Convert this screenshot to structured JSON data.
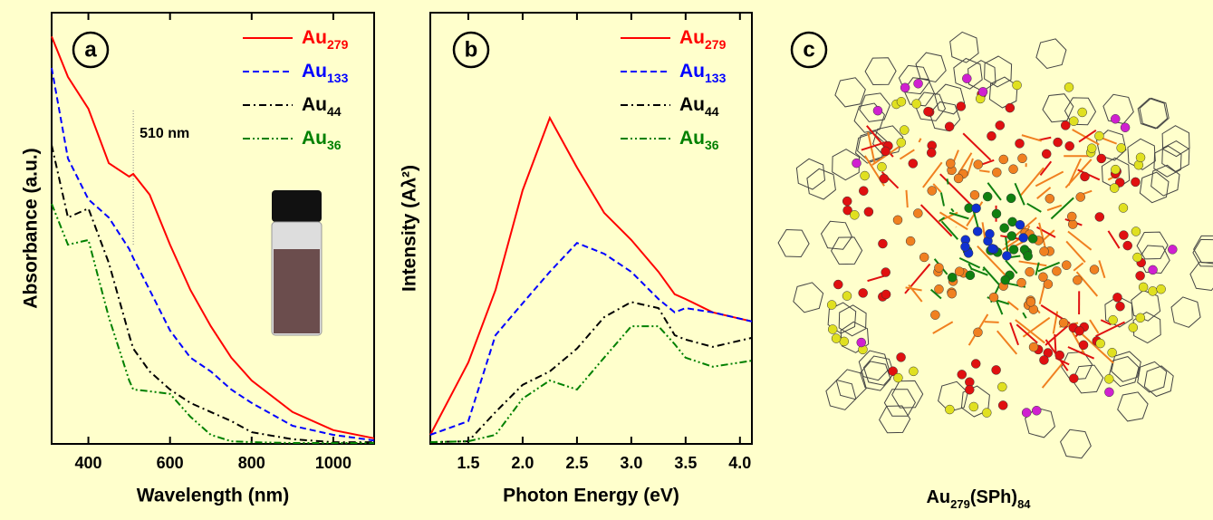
{
  "chart_data": [
    {
      "type": "line",
      "panel_label": "a",
      "xlabel": "Wavelength (nm)",
      "ylabel": "Absorbance (a.u.)",
      "x": [
        310,
        350,
        400,
        450,
        500,
        510,
        550,
        600,
        650,
        700,
        750,
        800,
        900,
        1000,
        1100
      ],
      "xlim": [
        310,
        1100
      ],
      "xticks": [
        400,
        600,
        800,
        1000
      ],
      "ylim": [
        0,
        1
      ],
      "annotation": {
        "text": "510 nm",
        "x": 510
      },
      "series": [
        {
          "name": "Au279",
          "color": "#ff0000",
          "dash": "solid",
          "values": [
            0.945,
            0.851,
            0.777,
            0.651,
            0.62,
            0.626,
            0.578,
            0.462,
            0.357,
            0.273,
            0.2,
            0.147,
            0.074,
            0.032,
            0.013
          ]
        },
        {
          "name": "Au133",
          "color": "#0000ff",
          "dash": "dashed",
          "values": [
            0.872,
            0.662,
            0.567,
            0.525,
            0.452,
            0.431,
            0.357,
            0.263,
            0.2,
            0.168,
            0.126,
            0.095,
            0.042,
            0.021,
            0.008
          ]
        },
        {
          "name": "Au44",
          "color": "#000000",
          "dash": "dashdot",
          "values": [
            0.693,
            0.525,
            0.546,
            0.42,
            0.252,
            0.221,
            0.168,
            0.126,
            0.095,
            0.074,
            0.053,
            0.027,
            0.011,
            0.004,
            0.004
          ]
        },
        {
          "name": "Au36",
          "color": "#008000",
          "dash": "dashdotdot",
          "values": [
            0.557,
            0.462,
            0.473,
            0.294,
            0.147,
            0.126,
            0.122,
            0.116,
            0.063,
            0.021,
            0.006,
            0.004,
            0.002,
            0.002,
            0.002
          ]
        }
      ]
    },
    {
      "type": "line",
      "panel_label": "b",
      "xlabel": "Photon Energy (eV)",
      "ylabel": "Intensity (Aλ²)",
      "x": [
        1.15,
        1.5,
        1.75,
        2.0,
        2.25,
        2.5,
        2.75,
        3.0,
        3.25,
        3.4,
        3.5,
        3.75,
        4.11
      ],
      "xlim": [
        1.15,
        4.11
      ],
      "xticks": [
        1.5,
        {
          "value": 2,
          "label": "2.0"
        },
        2.5,
        {
          "value": 3,
          "label": "3.0"
        },
        3.5,
        {
          "value": 4,
          "label": "4.0"
        }
      ],
      "ylim": [
        0,
        1
      ],
      "series": [
        {
          "name": "Au279",
          "color": "#ff0000",
          "dash": "solid",
          "values": [
            0.021,
            0.189,
            0.357,
            0.588,
            0.756,
            0.641,
            0.536,
            0.473,
            0.399,
            0.347,
            0.336,
            0.305,
            0.284
          ]
        },
        {
          "name": "Au133",
          "color": "#0000ff",
          "dash": "dashed",
          "values": [
            0.021,
            0.053,
            0.252,
            0.326,
            0.399,
            0.466,
            0.441,
            0.399,
            0.336,
            0.305,
            0.315,
            0.305,
            0.284
          ]
        },
        {
          "name": "Au44",
          "color": "#000000",
          "dash": "dashdot",
          "values": [
            0.004,
            0.006,
            0.074,
            0.137,
            0.168,
            0.221,
            0.294,
            0.329,
            0.315,
            0.252,
            0.242,
            0.225,
            0.246
          ]
        },
        {
          "name": "Au36",
          "color": "#008000",
          "dash": "dashdotdot",
          "values": [
            0.004,
            0.006,
            0.021,
            0.105,
            0.147,
            0.126,
            0.2,
            0.273,
            0.273,
            0.231,
            0.2,
            0.179,
            0.193
          ]
        }
      ]
    }
  ],
  "panel_c": {
    "label": "c",
    "caption": "Au279(SPh)84"
  }
}
